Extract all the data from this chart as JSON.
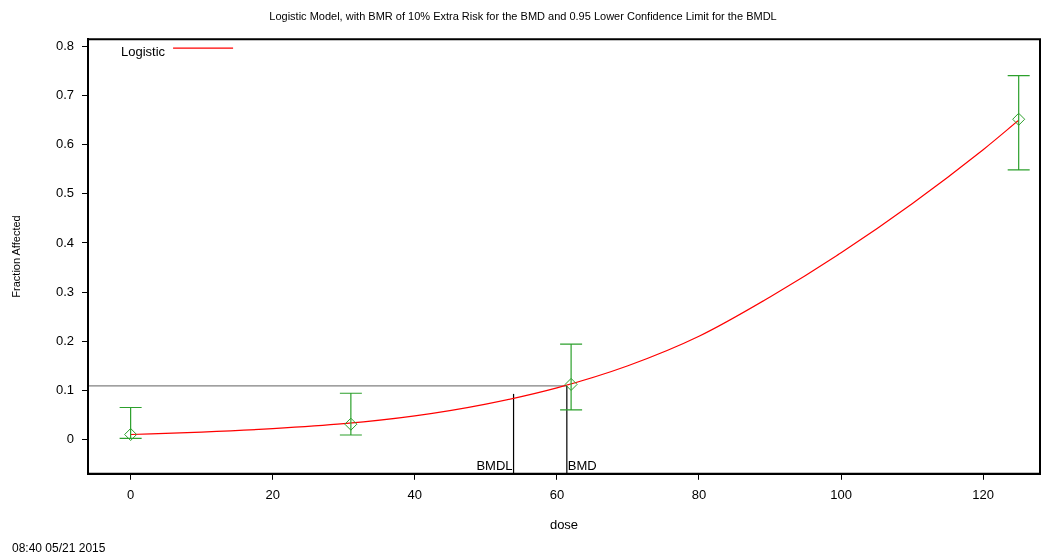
{
  "chart_data": {
    "type": "line",
    "title": "Logistic Model, with BMR of 10% Extra Risk for the BMD and 0.95 Lower Confidence Limit for the BMDL",
    "xlabel": "dose",
    "ylabel": "Fraction Affected",
    "xlim": [
      -6,
      128
    ],
    "xticks": [
      0,
      20,
      40,
      60,
      80,
      100,
      120
    ],
    "ylim": [
      -0.07,
      0.815
    ],
    "yticks": [
      0,
      0.1,
      0.2,
      0.3,
      0.4,
      0.5,
      0.6,
      0.7,
      0.8
    ],
    "grid": false,
    "legend": "top left",
    "series": [
      {
        "type": "scatter",
        "color": "#2ca02c",
        "marker": "diamond",
        "x": [
          0,
          31,
          62,
          125
        ],
        "values": [
          0.01,
          0.031,
          0.112,
          0.652
        ],
        "errors": [
          [
            0.002,
            0.065
          ],
          [
            0.009,
            0.094
          ],
          [
            0.06,
            0.194
          ],
          [
            0.549,
            0.741
          ]
        ]
      },
      {
        "type": "line",
        "name": "Logistic",
        "color": "#ff0000",
        "marker": "none",
        "line_style": "solid",
        "x": [
          0,
          10,
          20,
          30,
          40,
          50,
          60,
          70,
          80,
          90,
          100,
          110,
          120,
          125
        ],
        "values": [
          0.01,
          0.015,
          0.022,
          0.032,
          0.048,
          0.072,
          0.105,
          0.15,
          0.21,
          0.29,
          0.38,
          0.48,
          0.59,
          0.65
        ]
      }
    ],
    "ref_lines": [
      {
        "axis": "y",
        "value": 0.109,
        "color": "#808080"
      },
      {
        "axis": "x",
        "value": 53.9,
        "label": "BMDL",
        "color": "#000000"
      },
      {
        "axis": "x",
        "value": 61.4,
        "label": "BMD",
        "color": "#000000"
      }
    ],
    "annotations": [
      "08:40 05/21 2015"
    ]
  }
}
